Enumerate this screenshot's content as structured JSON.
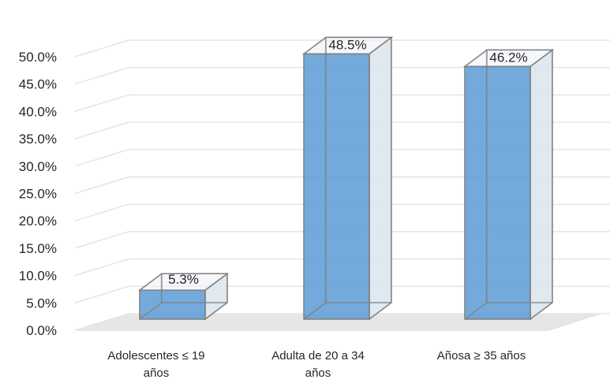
{
  "chart_data": {
    "type": "bar",
    "title": "",
    "xlabel": "",
    "ylabel": "",
    "categories": [
      "Adolescentes ≤ 19 años",
      "Adulta de 20 a 34 años",
      "Añosa ≥ 35 años"
    ],
    "category_lines": [
      [
        "Adolescentes ≤ 19",
        "años"
      ],
      [
        "Adulta de 20 a 34",
        "años"
      ],
      [
        "Añosa ≥ 35 años"
      ]
    ],
    "values": [
      5.3,
      48.5,
      46.2
    ],
    "data_labels": [
      "5.3%",
      "48.5%",
      "46.2%"
    ],
    "ylim": [
      0,
      50
    ],
    "yticks": [
      "0.0%",
      "5.0%",
      "10.0%",
      "15.0%",
      "20.0%",
      "25.0%",
      "30.0%",
      "35.0%",
      "40.0%",
      "45.0%",
      "50.0%"
    ],
    "grid": true,
    "style": "3d",
    "colors": {
      "bar_front": "#5b9bd5",
      "bar_side": "#dde5ee",
      "floor": "#e6e6e6",
      "grid": "#d9d9d9",
      "edge": "#7f7f7f"
    }
  }
}
